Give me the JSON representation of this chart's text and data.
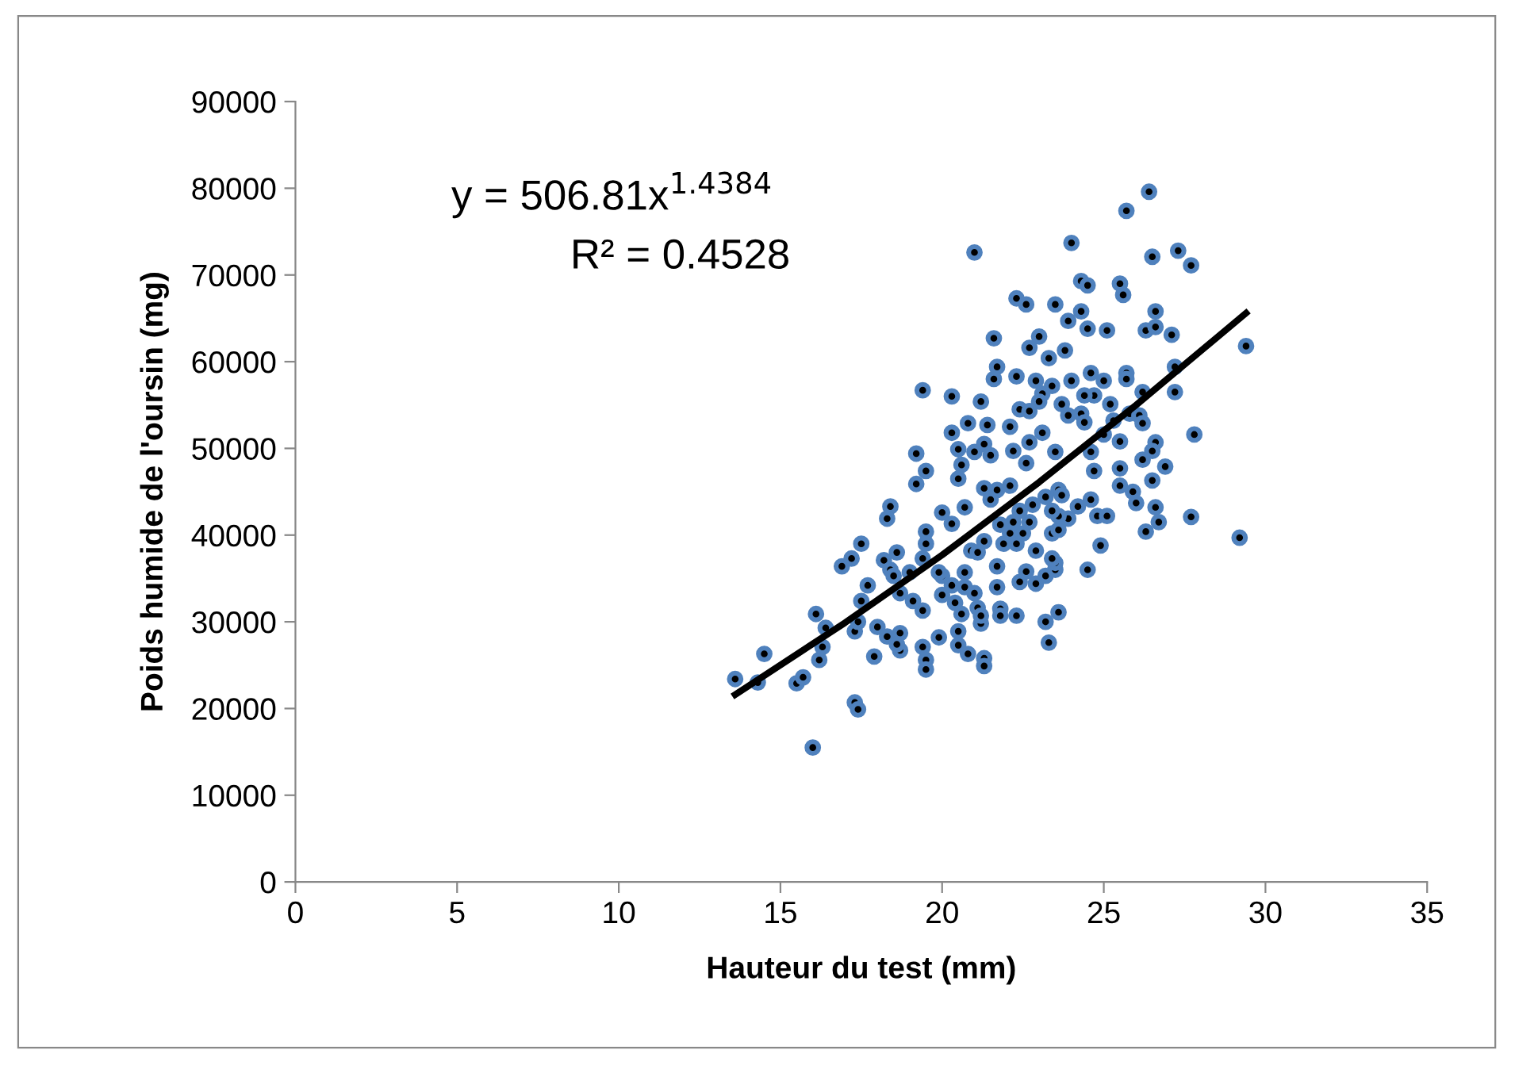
{
  "chart_data": {
    "type": "scatter",
    "xlabel": "Hauteur du test (mm)",
    "ylabel": "Poids humide de l'oursin (mg)",
    "xlim": [
      0,
      35
    ],
    "xticks": [
      0,
      5,
      10,
      15,
      20,
      25,
      30,
      35
    ],
    "ylim": [
      0,
      90000
    ],
    "yticks": [
      0,
      10000,
      20000,
      30000,
      40000,
      50000,
      60000,
      70000,
      80000,
      90000
    ],
    "grid": false,
    "legend": false,
    "marker": "circle",
    "annotations": [
      "y = 506.81x$^{1.4384}$",
      "R² = 0.4528"
    ],
    "series": [
      {
        "color": "#4f81bd",
        "x": [
          13.6,
          14.5,
          14.3,
          15.5,
          15.7,
          16.1,
          16.4,
          16.2,
          16.3,
          17.3,
          17.4,
          17.5,
          17.7,
          17.3,
          17.4,
          16.0,
          16.9,
          17.2,
          17.5,
          17.9,
          18.0,
          18.3,
          18.7,
          18.7,
          18.6,
          18.2,
          18.6,
          18.4,
          18.5,
          18.7,
          19.0,
          19.1,
          19.4,
          19.4,
          19.5,
          19.5,
          18.4,
          18.3,
          19.2,
          19.5,
          19.5,
          19.5,
          19.4,
          19.9,
          20.0,
          20.0,
          20.3,
          20.5,
          20.6,
          20.7,
          20.5,
          20.5,
          20.8,
          20.7,
          20.7,
          20.4,
          20.6,
          20.9,
          21.0,
          21.1,
          21.2,
          20.0,
          20.3,
          19.9,
          21.0,
          19.4,
          20.3,
          19.2,
          20.3,
          20.8,
          20.5,
          21.0,
          26.4,
          25.7,
          24.0,
          26.5,
          27.3,
          27.7,
          24.3,
          24.5,
          25.5,
          25.6,
          22.3,
          22.6,
          23.5,
          23.9,
          24.3,
          24.5,
          25.1,
          26.3,
          26.6,
          26.6,
          27.1,
          29.4,
          21.6,
          23.0,
          22.7,
          23.3,
          23.8,
          21.7,
          21.6,
          22.3,
          22.9,
          23.4,
          24.0,
          24.6,
          25.0,
          25.7,
          25.7,
          27.2,
          27.2,
          26.2,
          25.2,
          24.7,
          24.4,
          23.7,
          23.1,
          23.0,
          22.4,
          22.7,
          23.9,
          24.3,
          24.4,
          25.3,
          25.8,
          26.1,
          26.2,
          27.8,
          26.6,
          26.5,
          26.2,
          26.9,
          25.5,
          25.0,
          24.6,
          25.5,
          23.1,
          22.7,
          22.2,
          22.6,
          22.1,
          21.2,
          21.4,
          21.3,
          23.5,
          21.5,
          24.7,
          26.5,
          25.5,
          25.9,
          26.0,
          26.6,
          26.7,
          26.3,
          27.7,
          29.2,
          24.6,
          24.2,
          24.8,
          25.1,
          24.9,
          24.5,
          23.6,
          23.2,
          23.3,
          22.3,
          21.8,
          21.8,
          21.2,
          21.3,
          21.3,
          21.7,
          22.4,
          22.9,
          22.6,
          23.2,
          23.5,
          23.5,
          23.4,
          22.9,
          21.7,
          22.3,
          21.9,
          21.3,
          21.1,
          22.1,
          22.5,
          22.7,
          22.2,
          21.8,
          23.4,
          23.6,
          23.9,
          23.6,
          23.4,
          23.2,
          22.8,
          22.4,
          21.7,
          21.3,
          21.5,
          22.1,
          23.6,
          23.7
        ],
        "values": [
          23400,
          26300,
          23000,
          22900,
          23600,
          30900,
          29300,
          25600,
          27100,
          28900,
          30000,
          32400,
          34200,
          20700,
          19900,
          15500,
          36400,
          37300,
          39000,
          26000,
          29400,
          28300,
          28700,
          26700,
          27400,
          37100,
          38000,
          36000,
          35300,
          33300,
          35700,
          32400,
          31300,
          27100,
          25600,
          24500,
          43300,
          41900,
          45900,
          47400,
          40400,
          39000,
          37300,
          28200,
          33100,
          42600,
          41300,
          46500,
          48100,
          43200,
          28900,
          27300,
          26300,
          35700,
          34000,
          32200,
          30900,
          38200,
          33300,
          31600,
          29800,
          35300,
          34200,
          35700,
          72600,
          56700,
          56000,
          49400,
          51800,
          52900,
          49900,
          49600,
          79600,
          77400,
          73700,
          72100,
          72800,
          71100,
          69300,
          68800,
          69000,
          67700,
          67300,
          66600,
          66600,
          64700,
          65800,
          63800,
          63600,
          63600,
          64000,
          65800,
          63100,
          61800,
          62700,
          62900,
          61600,
          60400,
          61300,
          59400,
          58000,
          58300,
          57800,
          57200,
          57800,
          58700,
          57800,
          58700,
          58000,
          59400,
          56500,
          56500,
          55100,
          56100,
          56100,
          55100,
          56300,
          55400,
          54500,
          54300,
          53800,
          54000,
          53000,
          53200,
          54000,
          53800,
          52900,
          51600,
          50700,
          49700,
          48700,
          47900,
          50800,
          51600,
          49600,
          47700,
          51800,
          50700,
          49700,
          48300,
          52500,
          55400,
          52700,
          50500,
          49600,
          49200,
          47400,
          46300,
          45700,
          45000,
          43700,
          43200,
          41500,
          40400,
          42100,
          39700,
          44100,
          43300,
          42200,
          42200,
          38800,
          36000,
          31100,
          30000,
          27600,
          30700,
          31500,
          30700,
          30700,
          25800,
          24900,
          34000,
          34600,
          34400,
          35800,
          35300,
          36000,
          36800,
          37300,
          38200,
          36400,
          39000,
          39000,
          39300,
          38000,
          40200,
          40200,
          41500,
          41500,
          41200,
          40200,
          40600,
          41900,
          42200,
          42800,
          44400,
          43500,
          42800,
          45200,
          45400,
          44100,
          45700,
          45200,
          44600
        ]
      },
      {
        "type": "line",
        "color": "#000000",
        "marker": "none",
        "line_style": "solid",
        "x": [
          13.6,
          17,
          20,
          23,
          26,
          29.4
        ],
        "values": [
          21600,
          29900,
          37700,
          46100,
          55000,
          65600
        ]
      }
    ]
  }
}
